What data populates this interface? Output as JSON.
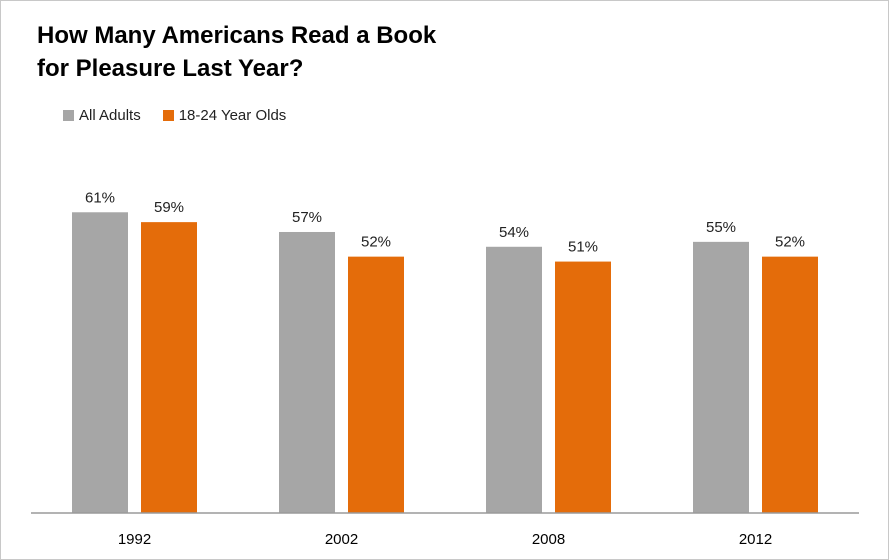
{
  "chart_data": {
    "type": "bar",
    "title_lines": [
      "How Many Americans Read a Book",
      "for Pleasure Last Year?"
    ],
    "categories": [
      "1992",
      "2002",
      "2008",
      "2012"
    ],
    "series": [
      {
        "name": "All Adults",
        "color": "#a6a6a6",
        "values": [
          61,
          57,
          54,
          55
        ],
        "labels": [
          "61%",
          "57%",
          "54%",
          "55%"
        ]
      },
      {
        "name": "18-24 Year Olds",
        "color": "#e46c0a",
        "values": [
          59,
          52,
          51,
          52
        ],
        "labels": [
          "59%",
          "52%",
          "51%",
          "52%"
        ]
      }
    ],
    "ylim": [
      0,
      100
    ],
    "legend_position": "top-left",
    "grid": false
  }
}
